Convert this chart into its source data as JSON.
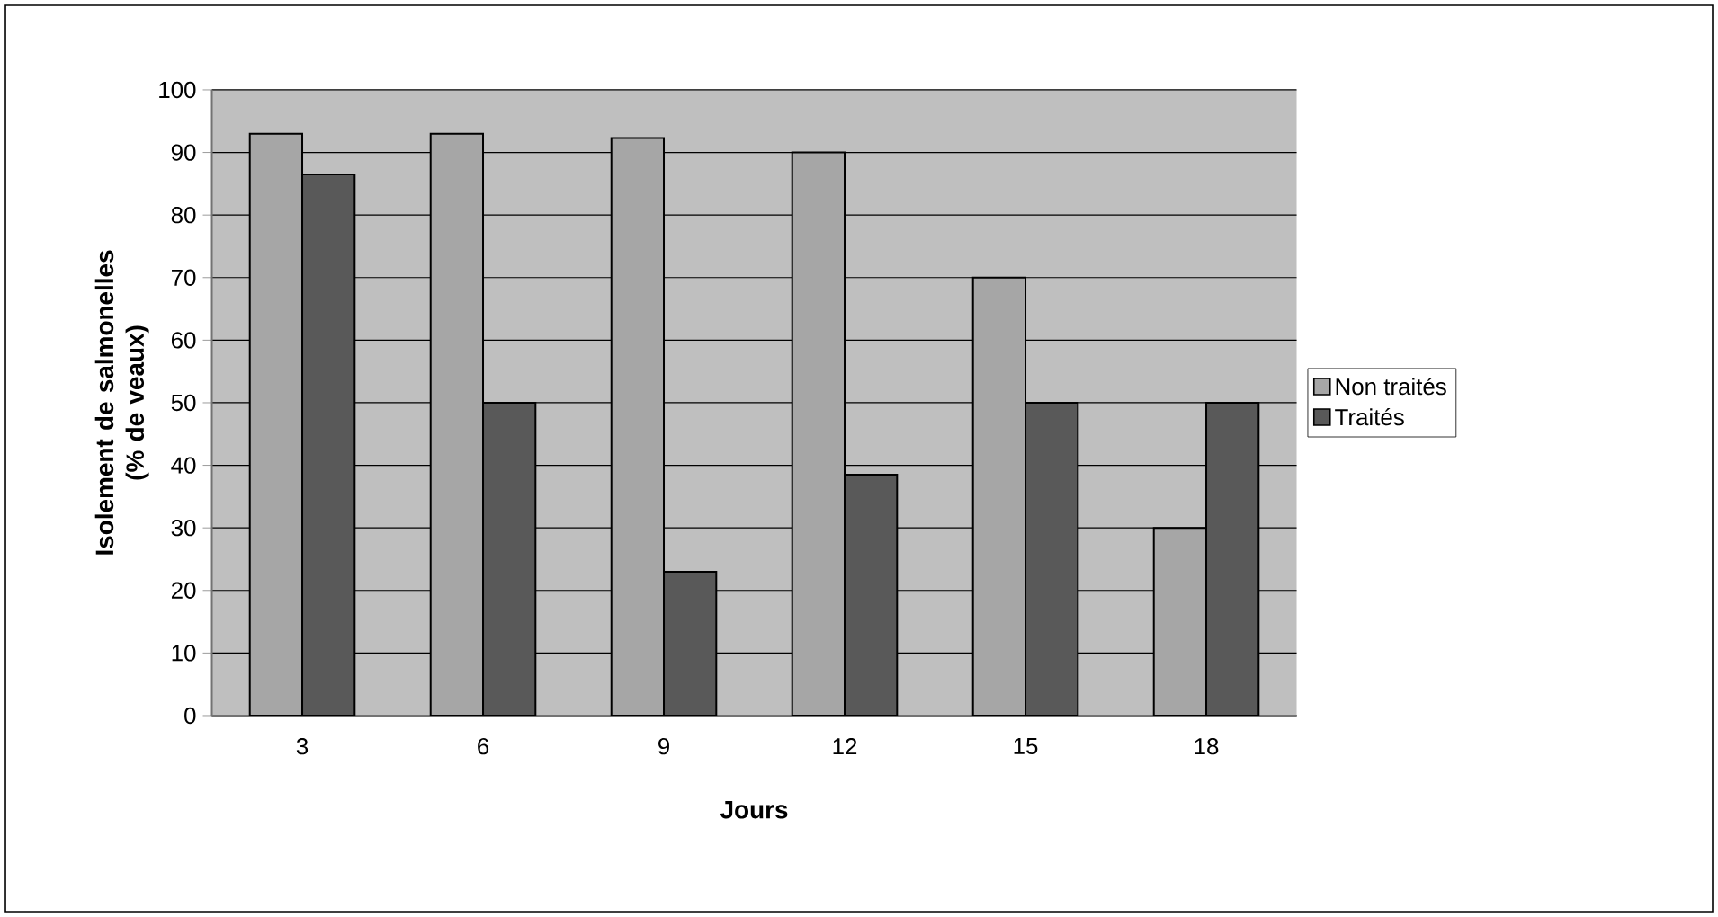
{
  "chart_data": {
    "type": "bar",
    "xlabel": "Jours",
    "ylabel": "Isolement de salmonelles (% de veaux)",
    "categories": [
      "3",
      "6",
      "9",
      "12",
      "15",
      "18"
    ],
    "series": [
      {
        "name": "Non traités",
        "color": "#a6a6a6",
        "values": [
          93,
          93,
          92.3,
          90,
          70,
          30
        ]
      },
      {
        "name": "Traités",
        "color": "#595959",
        "values": [
          86.5,
          50,
          23,
          38.5,
          50,
          50
        ]
      }
    ],
    "ylim": [
      0,
      100
    ],
    "yticks": [
      0,
      10,
      20,
      30,
      40,
      50,
      60,
      70,
      80,
      90,
      100
    ],
    "grid": "y",
    "legend": "right"
  }
}
